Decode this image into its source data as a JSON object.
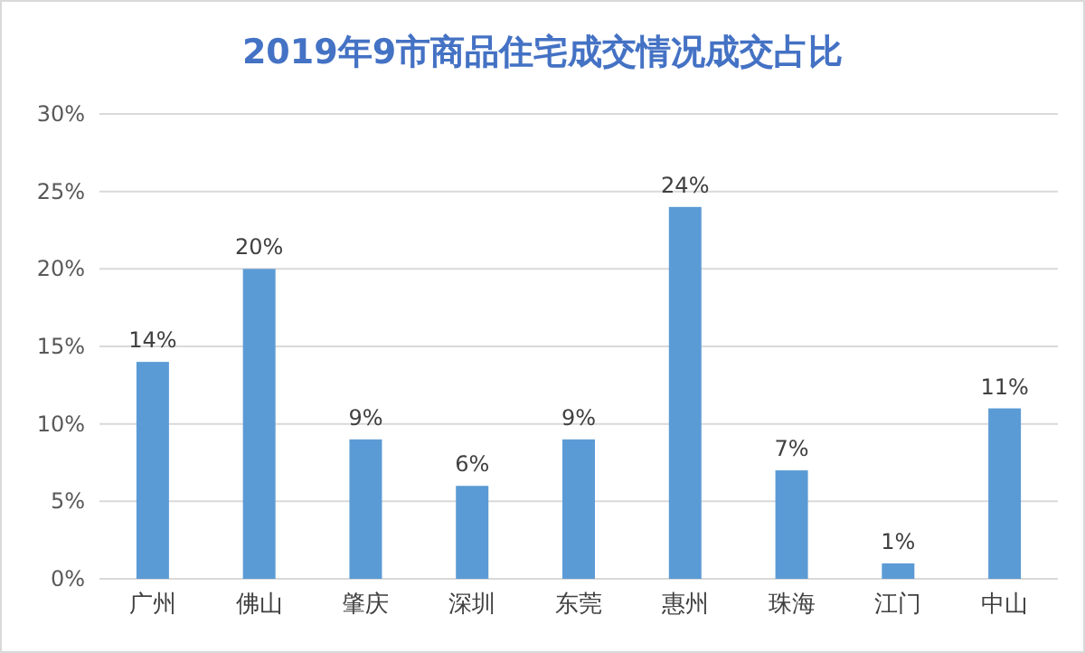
{
  "chart_data": {
    "type": "bar",
    "title": "2019年9市商品住宅成交情况成交占比",
    "categories": [
      "广州",
      "佛山",
      "肇庆",
      "深圳",
      "东莞",
      "惠州",
      "珠海",
      "江门",
      "中山"
    ],
    "values": [
      14,
      20,
      9,
      6,
      9,
      24,
      7,
      1,
      11
    ],
    "value_labels": [
      "14%",
      "20%",
      "9%",
      "6%",
      "9%",
      "24%",
      "7%",
      "1%",
      "11%"
    ],
    "color": "#5b9bd5",
    "ylim": [
      0,
      30
    ],
    "yticks": [
      {
        "value": 0,
        "label": "0%"
      },
      {
        "value": 5,
        "label": "5%"
      },
      {
        "value": 10,
        "label": "10%"
      },
      {
        "value": 15,
        "label": "15%"
      },
      {
        "value": 20,
        "label": "20%"
      },
      {
        "value": 25,
        "label": "25%"
      },
      {
        "value": 30,
        "label": "30%"
      }
    ],
    "grid": "y"
  }
}
